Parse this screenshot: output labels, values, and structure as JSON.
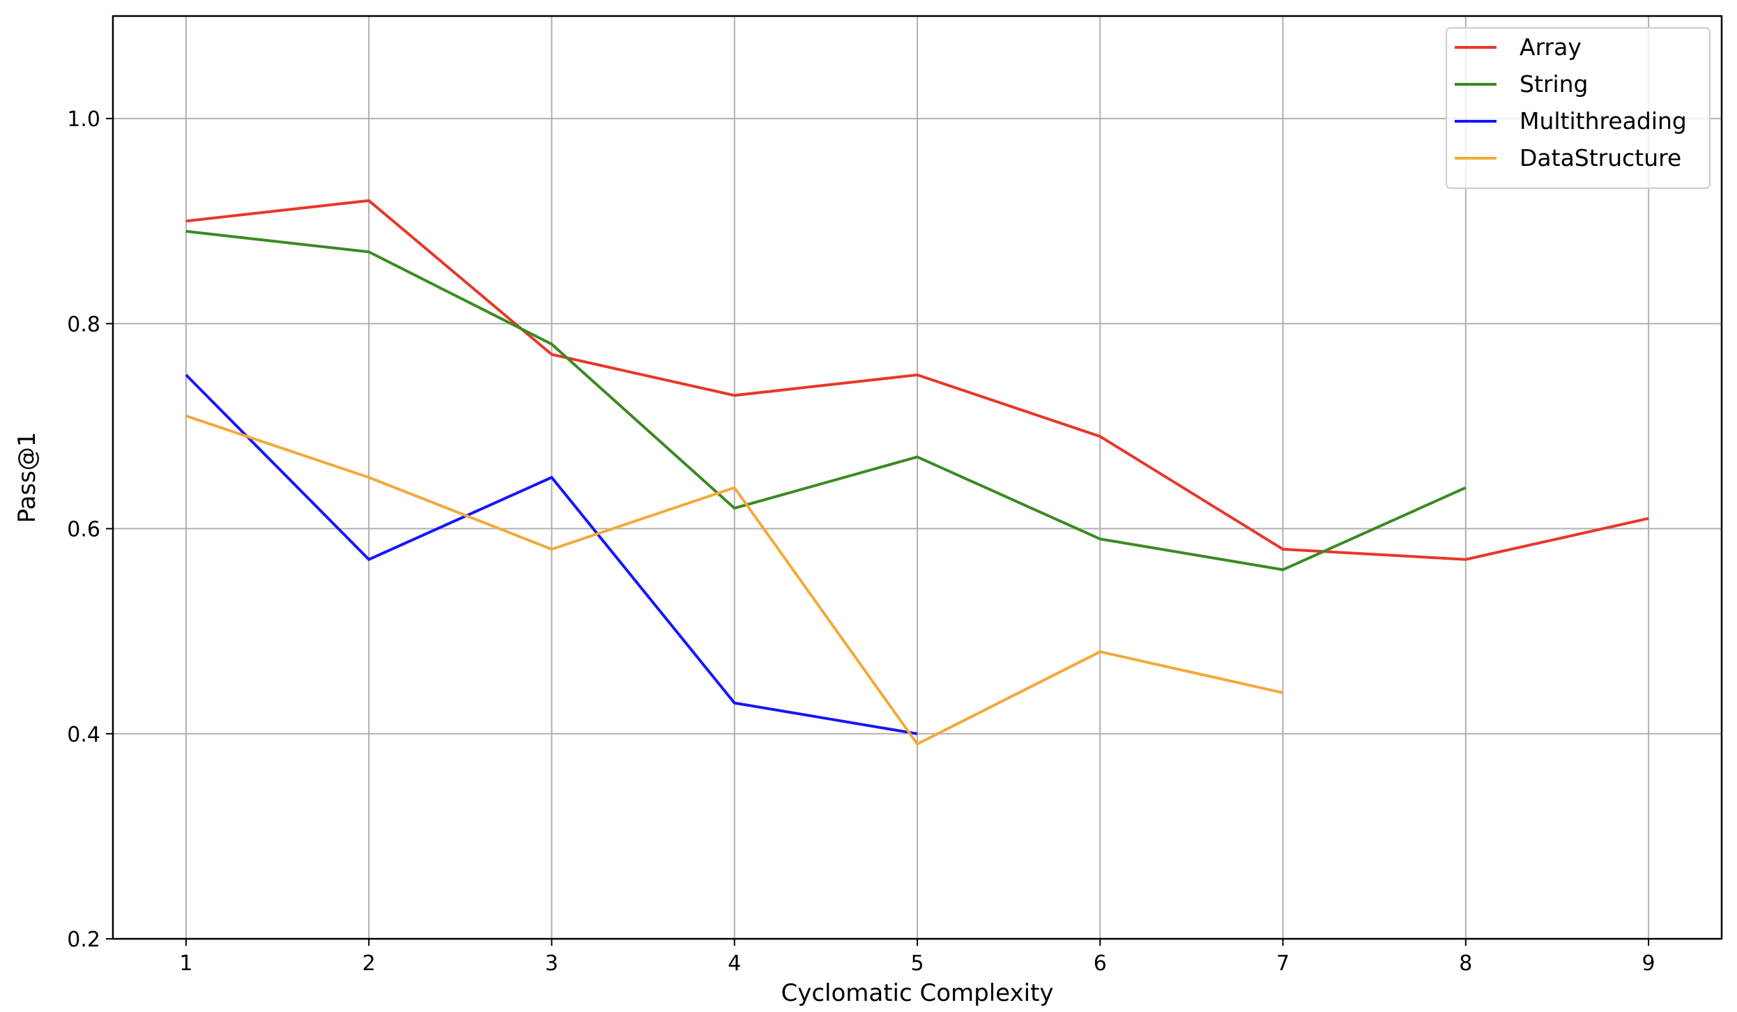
{
  "chart_data": {
    "type": "line",
    "title": "",
    "xlabel": "Cyclomatic Complexity",
    "ylabel": "Pass@1",
    "xlim": [
      0.6,
      9.4
    ],
    "ylim": [
      0.2,
      1.1
    ],
    "x_ticks": [
      "1",
      "2",
      "3",
      "4",
      "5",
      "6",
      "7",
      "8",
      "9"
    ],
    "y_ticks": [
      "0.2",
      "0.4",
      "0.6",
      "0.8",
      "1.0"
    ],
    "grid": true,
    "legend_position": "top-right",
    "series": [
      {
        "name": "Array",
        "color": "#e8372a",
        "x": [
          1,
          2,
          3,
          4,
          5,
          6,
          7,
          8,
          9
        ],
        "values": [
          0.9,
          0.92,
          0.77,
          0.73,
          0.75,
          0.69,
          0.58,
          0.57,
          0.61
        ]
      },
      {
        "name": "String",
        "color": "#3a8a22",
        "x": [
          1,
          2,
          3,
          4,
          5,
          6,
          7,
          8
        ],
        "values": [
          0.89,
          0.87,
          0.78,
          0.62,
          0.67,
          0.59,
          0.56,
          0.64
        ]
      },
      {
        "name": "Multithreading",
        "color": "#1515ff",
        "x": [
          1,
          2,
          3,
          4,
          5
        ],
        "values": [
          0.75,
          0.57,
          0.65,
          0.43,
          0.4
        ]
      },
      {
        "name": "DataStructure",
        "color": "#f2a93b",
        "x": [
          1,
          2,
          3,
          4,
          5,
          6,
          7
        ],
        "values": [
          0.71,
          0.65,
          0.58,
          0.64,
          0.39,
          0.48,
          0.44
        ]
      }
    ]
  }
}
